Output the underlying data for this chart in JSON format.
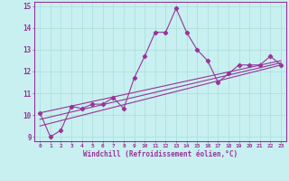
{
  "title": "",
  "xlabel": "Windchill (Refroidissement éolien,°C)",
  "ylabel": "",
  "xlim": [
    -0.5,
    23.5
  ],
  "ylim": [
    8.8,
    15.2
  ],
  "yticks": [
    9,
    10,
    11,
    12,
    13,
    14,
    15
  ],
  "xticks": [
    0,
    1,
    2,
    3,
    4,
    5,
    6,
    7,
    8,
    9,
    10,
    11,
    12,
    13,
    14,
    15,
    16,
    17,
    18,
    19,
    20,
    21,
    22,
    23
  ],
  "bg_color": "#c8f0f0",
  "line_color": "#993399",
  "grid_color": "#aadddd",
  "series1_x": [
    0,
    1,
    2,
    3,
    4,
    5,
    6,
    7,
    8,
    9,
    10,
    11,
    12,
    13,
    14,
    15,
    16,
    17,
    18,
    19,
    20,
    21,
    22,
    23
  ],
  "series1_y": [
    10.1,
    9.0,
    9.3,
    10.4,
    10.3,
    10.5,
    10.5,
    10.8,
    10.3,
    11.7,
    12.7,
    13.8,
    13.8,
    14.9,
    13.8,
    13.0,
    12.5,
    11.5,
    11.9,
    12.3,
    12.3,
    12.3,
    12.7,
    12.3
  ],
  "series2_x": [
    0,
    23
  ],
  "series2_y": [
    9.5,
    12.3
  ],
  "series3_x": [
    0,
    23
  ],
  "series3_y": [
    9.8,
    12.4
  ],
  "series4_x": [
    0,
    23
  ],
  "series4_y": [
    10.1,
    12.5
  ],
  "marker": "D",
  "marker_size": 2.2,
  "linewidth": 0.8
}
